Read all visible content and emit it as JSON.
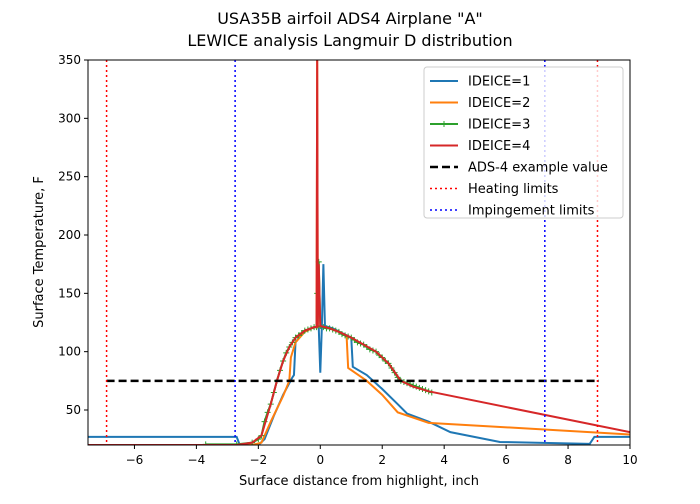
{
  "chart_data": {
    "type": "line",
    "title": "USA35B airfoil ADS4 Airplane \"A\"",
    "subtitle": "LEWICE analysis Langmuir D distribution",
    "xlabel": "Surface distance from highlight, inch",
    "ylabel": "Surface Temperature, F",
    "xlim": [
      -7.5,
      10
    ],
    "ylim": [
      20,
      350
    ],
    "xticks": [
      -6,
      -4,
      -2,
      0,
      2,
      4,
      6,
      8,
      10
    ],
    "yticks": [
      50,
      100,
      150,
      200,
      250,
      300,
      350
    ],
    "grid": false,
    "legend_position": "top-right",
    "series": [
      {
        "name": "IDEICE=1",
        "color": "#1f77b4",
        "style": "solid",
        "x": [
          -7.5,
          -2.7,
          -2.6,
          -2.0,
          -1.8,
          -1.5,
          -1.2,
          -0.9,
          -0.85,
          -0.8,
          -0.6,
          -0.4,
          -0.2,
          -0.05,
          0.0,
          0.05,
          0.1,
          0.15,
          0.4,
          0.7,
          1.0,
          1.05,
          1.5,
          2.0,
          2.5,
          2.8,
          3.5,
          4.2,
          5.8,
          8.7,
          8.85,
          10
        ],
        "y": [
          27,
          27,
          20,
          20,
          25,
          45,
          63,
          78,
          80,
          108,
          115,
          119,
          121,
          121,
          82,
          121,
          175,
          122,
          120,
          116,
          112,
          87,
          80,
          68,
          55,
          47,
          40,
          31,
          22.6,
          21,
          27,
          27
        ]
      },
      {
        "name": "IDEICE=2",
        "color": "#ff7f0e",
        "style": "solid",
        "x": [
          -7.5,
          -2.2,
          -1.9,
          -1.6,
          -1.2,
          -1.0,
          -0.95,
          -0.8,
          -0.5,
          -0.2,
          -0.12,
          -0.1,
          -0.08,
          0.0,
          0.3,
          0.6,
          0.85,
          0.9,
          1.5,
          2.0,
          2.5,
          3.5,
          10
        ],
        "y": [
          20,
          20,
          22,
          40,
          62,
          75,
          95,
          108,
          117,
          121,
          121,
          350,
          121,
          122,
          120,
          117,
          113,
          86,
          75,
          63,
          48,
          39,
          29
        ]
      },
      {
        "name": "IDEICE=3",
        "color": "#2ca02c",
        "style": "solid",
        "marker": "+",
        "x": [
          -3.7,
          -2.7,
          -2.2,
          -2.0,
          -1.9,
          -1.8,
          -1.7,
          -1.6,
          -1.5,
          -1.4,
          -1.3,
          -1.2,
          -1.1,
          -1.0,
          -0.9,
          -0.8,
          -0.7,
          -0.6,
          -0.5,
          -0.4,
          -0.3,
          -0.2,
          -0.12,
          -0.1,
          -0.05,
          0.0,
          0.1,
          0.2,
          0.3,
          0.4,
          0.5,
          0.6,
          0.7,
          0.8,
          0.9,
          1.0,
          1.1,
          1.2,
          1.3,
          1.4,
          1.5,
          1.6,
          1.7,
          1.8,
          1.9,
          2.0,
          2.1,
          2.2,
          2.3,
          2.4,
          2.5,
          2.6,
          2.7,
          2.8,
          2.9,
          3.0,
          3.1,
          3.2,
          3.3,
          3.4,
          3.5,
          3.6
        ],
        "y": [
          20.5,
          20.5,
          22,
          25,
          28,
          40,
          48,
          55,
          65,
          75,
          84,
          92,
          99,
          104,
          108,
          112,
          114,
          116,
          118,
          119,
          120,
          121,
          121,
          150,
          177,
          122,
          121,
          120,
          120,
          119,
          118,
          117,
          115,
          114,
          113,
          112,
          110,
          108,
          107,
          106,
          104,
          102,
          101,
          100,
          97,
          95,
          92,
          90,
          86,
          82,
          78,
          75,
          74,
          73,
          72,
          71,
          70,
          69,
          68,
          67,
          66,
          65
        ]
      },
      {
        "name": "IDEICE=4",
        "color": "#d62728",
        "style": "solid",
        "x": [
          -7.5,
          -2.7,
          -2.2,
          -1.9,
          -1.6,
          -1.4,
          -1.2,
          -1.0,
          -0.8,
          -0.5,
          -0.2,
          -0.12,
          -0.1,
          -0.08,
          -0.05,
          0.0,
          0.3,
          0.6,
          1.0,
          1.4,
          1.8,
          2.2,
          2.6,
          3.0,
          3.5,
          10
        ],
        "y": [
          20,
          20,
          22,
          28,
          55,
          75,
          92,
          104,
          112,
          118,
          121,
          121,
          350,
          121,
          175,
          122,
          120,
          117,
          112,
          106,
          100,
          90,
          75,
          70,
          66,
          31
        ]
      },
      {
        "name": "ADS-4 example value",
        "color": "#000000",
        "style": "dashed",
        "x": [
          -6.9,
          9.0
        ],
        "y": [
          75,
          75
        ]
      },
      {
        "name": "Heating limits",
        "color": "#ff0000",
        "style": "dotted",
        "vertical": [
          -6.9,
          8.95
        ]
      },
      {
        "name": "Impingement limits",
        "color": "#0000ff",
        "style": "dotted",
        "vertical": [
          -2.75,
          7.25
        ]
      }
    ]
  }
}
